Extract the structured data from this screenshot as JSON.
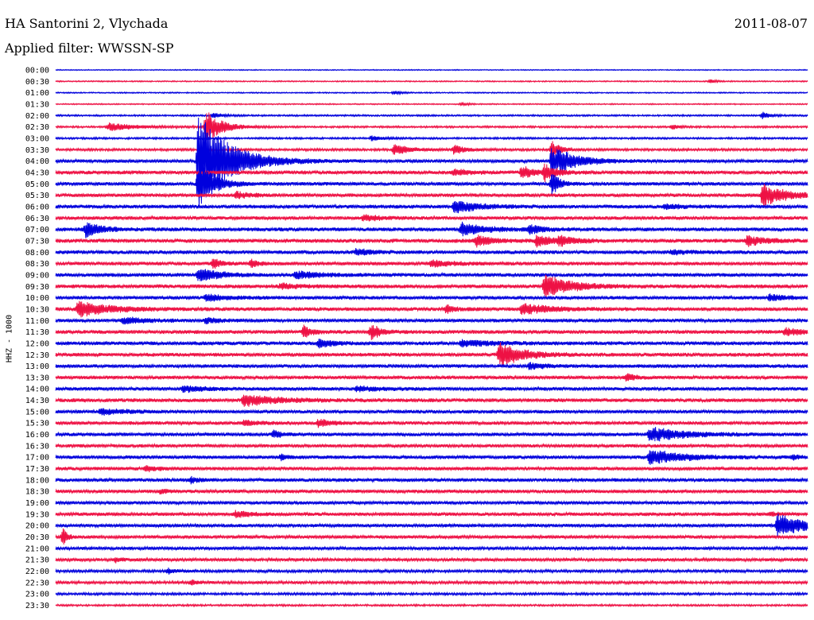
{
  "header": {
    "station": "HA Santorini 2, Vlychada",
    "date": "2011-08-07",
    "filter": "Applied filter: WWSSN-SP"
  },
  "chart_data": {
    "type": "line",
    "title": "HA Santorini 2, Vlychada",
    "ylabel": "HHZ - 1000",
    "row_colors": [
      "#0000dd",
      "#ee1144"
    ],
    "x_minutes_per_row": 30,
    "row_labels": [
      "00:00",
      "00:30",
      "01:00",
      "01:30",
      "02:00",
      "02:30",
      "03:00",
      "03:30",
      "04:00",
      "04:30",
      "05:00",
      "05:30",
      "06:00",
      "06:30",
      "07:00",
      "07:30",
      "08:00",
      "08:30",
      "09:00",
      "09:30",
      "10:00",
      "10:30",
      "11:00",
      "11:30",
      "12:00",
      "12:30",
      "13:00",
      "13:30",
      "14:00",
      "14:30",
      "15:00",
      "15:30",
      "16:00",
      "16:30",
      "17:00",
      "17:30",
      "18:00",
      "18:30",
      "19:00",
      "19:30",
      "20:00",
      "20:30",
      "21:00",
      "21:30",
      "22:00",
      "22:30",
      "23:00",
      "23:30"
    ],
    "series": [
      {
        "noise": 0.4,
        "events": []
      },
      {
        "noise": 0.5,
        "events": [
          {
            "t": 0.87,
            "a": 2,
            "w": 0.01
          }
        ]
      },
      {
        "noise": 0.5,
        "events": [
          {
            "t": 0.45,
            "a": 2,
            "w": 0.01
          }
        ]
      },
      {
        "noise": 0.5,
        "events": [
          {
            "t": 0.54,
            "a": 2,
            "w": 0.01
          }
        ]
      },
      {
        "noise": 0.7,
        "events": [
          {
            "t": 0.21,
            "a": 4,
            "w": 0.01
          },
          {
            "t": 0.94,
            "a": 4,
            "w": 0.01
          }
        ]
      },
      {
        "noise": 0.8,
        "events": [
          {
            "t": 0.07,
            "a": 5,
            "w": 0.035
          },
          {
            "t": 0.2,
            "a": 22,
            "w": 0.02
          },
          {
            "t": 0.82,
            "a": 3,
            "w": 0.01
          }
        ]
      },
      {
        "noise": 0.8,
        "events": [
          {
            "t": 0.42,
            "a": 3,
            "w": 0.015
          }
        ]
      },
      {
        "noise": 1.0,
        "events": [
          {
            "t": 0.45,
            "a": 6,
            "w": 0.025
          },
          {
            "t": 0.53,
            "a": 6,
            "w": 0.015
          },
          {
            "t": 0.66,
            "a": 12,
            "w": 0.01
          }
        ]
      },
      {
        "noise": 1.4,
        "events": [
          {
            "t": 0.19,
            "a": 60,
            "w": 0.04
          },
          {
            "t": 0.66,
            "a": 20,
            "w": 0.03
          }
        ]
      },
      {
        "noise": 1.6,
        "events": [
          {
            "t": 0.62,
            "a": 8,
            "w": 0.015
          },
          {
            "t": 0.65,
            "a": 10,
            "w": 0.015
          },
          {
            "t": 0.53,
            "a": 4,
            "w": 0.02
          }
        ]
      },
      {
        "noise": 1.5,
        "events": [
          {
            "t": 0.19,
            "a": 30,
            "w": 0.02
          },
          {
            "t": 0.66,
            "a": 15,
            "w": 0.01
          }
        ]
      },
      {
        "noise": 1.5,
        "events": [
          {
            "t": 0.94,
            "a": 14,
            "w": 0.03
          },
          {
            "t": 0.24,
            "a": 4,
            "w": 0.02
          }
        ]
      },
      {
        "noise": 1.6,
        "events": [
          {
            "t": 0.53,
            "a": 8,
            "w": 0.03
          },
          {
            "t": 0.81,
            "a": 3,
            "w": 0.02
          }
        ]
      },
      {
        "noise": 1.5,
        "events": [
          {
            "t": 0.41,
            "a": 4,
            "w": 0.02
          }
        ]
      },
      {
        "noise": 1.6,
        "events": [
          {
            "t": 0.04,
            "a": 10,
            "w": 0.02
          },
          {
            "t": 0.54,
            "a": 8,
            "w": 0.03
          },
          {
            "t": 0.63,
            "a": 5,
            "w": 0.02
          }
        ]
      },
      {
        "noise": 1.7,
        "events": [
          {
            "t": 0.56,
            "a": 7,
            "w": 0.02
          },
          {
            "t": 0.64,
            "a": 7,
            "w": 0.02
          },
          {
            "t": 0.67,
            "a": 6,
            "w": 0.02
          },
          {
            "t": 0.92,
            "a": 7,
            "w": 0.02
          }
        ]
      },
      {
        "noise": 1.6,
        "events": [
          {
            "t": 0.4,
            "a": 4,
            "w": 0.02
          },
          {
            "t": 0.82,
            "a": 3,
            "w": 0.02
          }
        ]
      },
      {
        "noise": 1.5,
        "events": [
          {
            "t": 0.21,
            "a": 7,
            "w": 0.01
          },
          {
            "t": 0.26,
            "a": 5,
            "w": 0.01
          },
          {
            "t": 0.5,
            "a": 4,
            "w": 0.03
          }
        ]
      },
      {
        "noise": 1.6,
        "events": [
          {
            "t": 0.19,
            "a": 9,
            "w": 0.025
          },
          {
            "t": 0.32,
            "a": 5,
            "w": 0.03
          }
        ]
      },
      {
        "noise": 1.6,
        "events": [
          {
            "t": 0.65,
            "a": 14,
            "w": 0.035
          },
          {
            "t": 0.3,
            "a": 4,
            "w": 0.02
          }
        ]
      },
      {
        "noise": 1.5,
        "events": [
          {
            "t": 0.2,
            "a": 4,
            "w": 0.03
          },
          {
            "t": 0.95,
            "a": 4,
            "w": 0.02
          }
        ]
      },
      {
        "noise": 1.6,
        "events": [
          {
            "t": 0.03,
            "a": 10,
            "w": 0.04
          },
          {
            "t": 0.52,
            "a": 5,
            "w": 0.01
          },
          {
            "t": 0.62,
            "a": 7,
            "w": 0.035
          }
        ]
      },
      {
        "noise": 1.5,
        "events": [
          {
            "t": 0.09,
            "a": 4,
            "w": 0.03
          },
          {
            "t": 0.2,
            "a": 3,
            "w": 0.02
          }
        ]
      },
      {
        "noise": 1.6,
        "events": [
          {
            "t": 0.33,
            "a": 8,
            "w": 0.01
          },
          {
            "t": 0.42,
            "a": 10,
            "w": 0.012
          },
          {
            "t": 0.97,
            "a": 5,
            "w": 0.02
          }
        ]
      },
      {
        "noise": 1.6,
        "events": [
          {
            "t": 0.35,
            "a": 5,
            "w": 0.02
          },
          {
            "t": 0.54,
            "a": 4,
            "w": 0.04
          }
        ]
      },
      {
        "noise": 1.6,
        "events": [
          {
            "t": 0.59,
            "a": 16,
            "w": 0.03
          }
        ]
      },
      {
        "noise": 1.5,
        "events": [
          {
            "t": 0.63,
            "a": 4,
            "w": 0.02
          }
        ]
      },
      {
        "noise": 1.5,
        "events": [
          {
            "t": 0.76,
            "a": 6,
            "w": 0.01
          }
        ]
      },
      {
        "noise": 1.5,
        "events": [
          {
            "t": 0.17,
            "a": 4,
            "w": 0.03
          },
          {
            "t": 0.4,
            "a": 3,
            "w": 0.03
          }
        ]
      },
      {
        "noise": 1.6,
        "events": [
          {
            "t": 0.25,
            "a": 7,
            "w": 0.045
          }
        ]
      },
      {
        "noise": 1.5,
        "events": [
          {
            "t": 0.06,
            "a": 4,
            "w": 0.03
          }
        ]
      },
      {
        "noise": 1.5,
        "events": [
          {
            "t": 0.35,
            "a": 5,
            "w": 0.015
          },
          {
            "t": 0.25,
            "a": 3,
            "w": 0.02
          }
        ]
      },
      {
        "noise": 1.5,
        "events": [
          {
            "t": 0.29,
            "a": 5,
            "w": 0.01
          },
          {
            "t": 0.79,
            "a": 9,
            "w": 0.045
          }
        ]
      },
      {
        "noise": 1.4,
        "events": []
      },
      {
        "noise": 1.5,
        "events": [
          {
            "t": 0.3,
            "a": 4,
            "w": 0.01
          },
          {
            "t": 0.79,
            "a": 9,
            "w": 0.045
          },
          {
            "t": 0.98,
            "a": 3,
            "w": 0.01
          }
        ]
      },
      {
        "noise": 1.5,
        "events": [
          {
            "t": 0.12,
            "a": 3,
            "w": 0.02
          }
        ]
      },
      {
        "noise": 1.5,
        "events": [
          {
            "t": 0.18,
            "a": 4,
            "w": 0.01
          }
        ]
      },
      {
        "noise": 1.5,
        "events": [
          {
            "t": 0.14,
            "a": 3,
            "w": 0.01
          }
        ]
      },
      {
        "noise": 1.4,
        "events": []
      },
      {
        "noise": 1.5,
        "events": [
          {
            "t": 0.24,
            "a": 4,
            "w": 0.02
          },
          {
            "t": 0.95,
            "a": 3,
            "w": 0.01
          }
        ]
      },
      {
        "noise": 1.4,
        "events": [
          {
            "t": 0.96,
            "a": 14,
            "w": 0.04
          }
        ]
      },
      {
        "noise": 1.4,
        "events": [
          {
            "t": 0.01,
            "a": 12,
            "w": 0.005
          }
        ]
      },
      {
        "noise": 1.3,
        "events": []
      },
      {
        "noise": 1.3,
        "events": [
          {
            "t": 0.08,
            "a": 3,
            "w": 0.01
          }
        ]
      },
      {
        "noise": 1.2,
        "events": [
          {
            "t": 0.15,
            "a": 3,
            "w": 0.01
          }
        ]
      },
      {
        "noise": 1.2,
        "events": [
          {
            "t": 0.18,
            "a": 3,
            "w": 0.01
          }
        ]
      },
      {
        "noise": 1.0,
        "events": []
      },
      {
        "noise": 0.8,
        "events": []
      }
    ]
  }
}
